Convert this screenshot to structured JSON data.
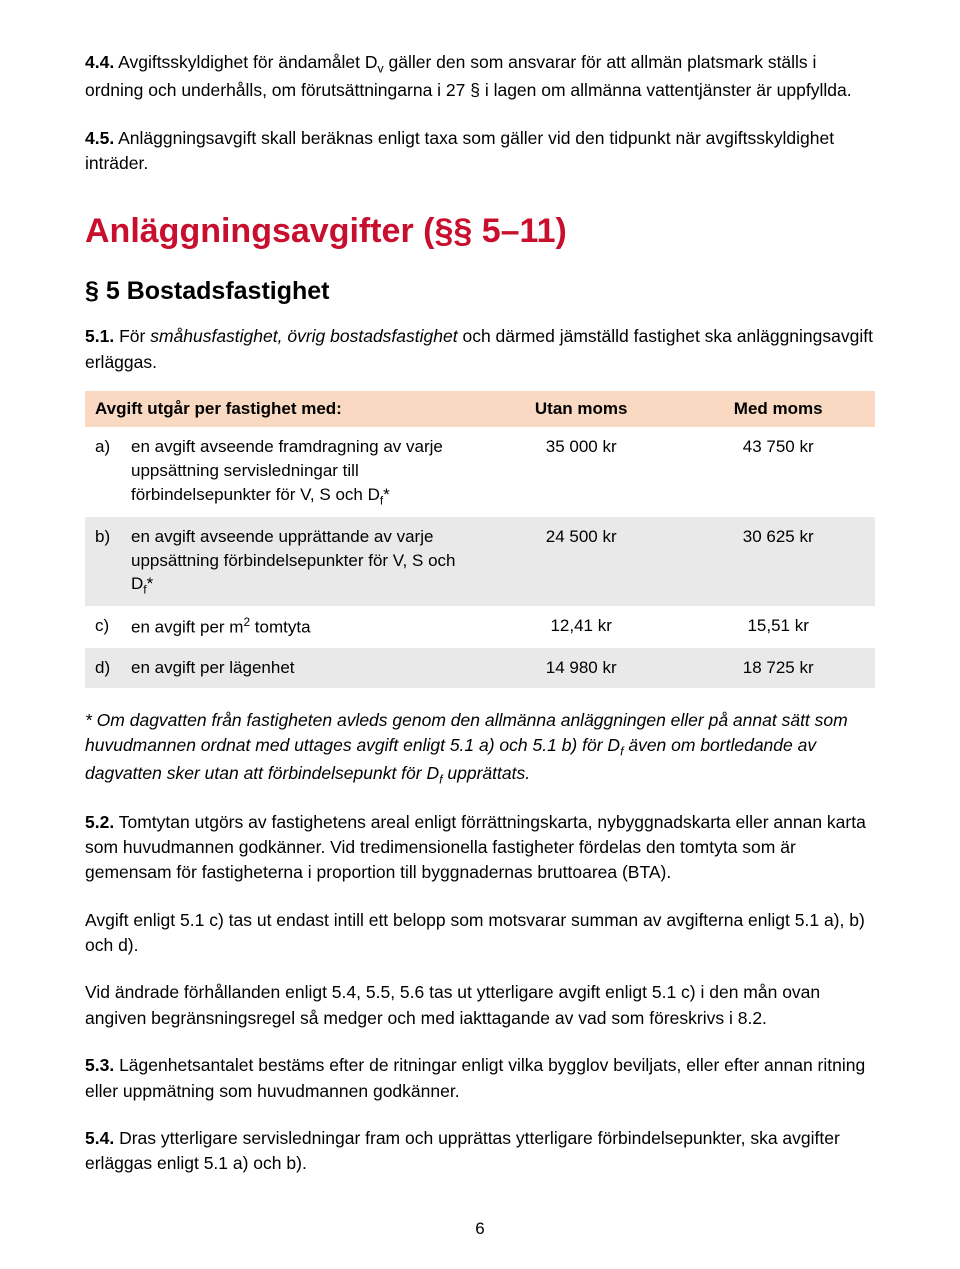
{
  "colors": {
    "accent_red": "#c8102e",
    "table_header_bg": "#f9d9c2",
    "table_alt_bg": "#e9e9e9",
    "text": "#000000",
    "background": "#ffffff"
  },
  "typography": {
    "body_fontsize_pt": 13,
    "h1_fontsize_pt": 25,
    "h2_fontsize_pt": 19,
    "body_lineheight": 1.45
  },
  "para_4_4_lead": "4.4.",
  "para_4_4_body_before_sub": " Avgiftsskyldighet för ändamålet D",
  "para_4_4_sub": "v",
  "para_4_4_body_after_sub": " gäller den som ansvarar för att allmän platsmark ställs i ordning och underhålls, om förutsättningarna i 27 § i lagen om allmänna vattentjänster är uppfyllda.",
  "para_4_5_lead": "4.5.",
  "para_4_5_body": " Anläggningsavgift skall beräknas enligt taxa som gäller vid den tidpunkt när avgiftsskyldighet inträder.",
  "heading_main": "Anläggningsavgifter (§§ 5–11)",
  "heading_sub": "§ 5 Bostadsfastighet",
  "intro_5_1_lead": "5.1.",
  "intro_5_1_before_italic": " För ",
  "intro_5_1_italic": "småhusfastighet, övrig bostadsfastighet",
  "intro_5_1_after_italic": " och därmed jämställd fastighet ska anläggningsavgift erläggas.",
  "table": {
    "columns": [
      "Avgift utgår per fastighet med:",
      "Utan moms",
      "Med moms"
    ],
    "col_align": [
      "left",
      "center",
      "center"
    ],
    "rows": [
      {
        "label": "a)",
        "desc_pre": "en avgift avseende framdragning av varje uppsättning servisledningar till förbindelsepunkter för V, S och D",
        "desc_sub": "f",
        "desc_post": "*",
        "utan": "35 000 kr",
        "med": "43 750 kr",
        "alt": false
      },
      {
        "label": "b)",
        "desc_pre": "en avgift avseende upprättande av varje uppsättning förbindelsepunkter för V, S och D",
        "desc_sub": "f",
        "desc_post": "*",
        "utan": "24 500 kr",
        "med": "30 625 kr",
        "alt": true
      },
      {
        "label": "c)",
        "desc_pre": "en avgift per m",
        "desc_sup": "2",
        "desc_post": " tomtyta",
        "utan": "12,41 kr",
        "med": "15,51 kr",
        "alt": false
      },
      {
        "label": "d)",
        "desc_pre": "en avgift per lägenhet",
        "utan": "14 980 kr",
        "med": "18 725 kr",
        "alt": true
      }
    ]
  },
  "footnote_pre": "* Om dagvatten från fastigheten avleds genom den allmänna anläggningen eller på annat sätt som huvudmannen ordnat med uttages avgift enligt 5.1 a) och 5.1 b) för D",
  "footnote_sub": "f",
  "footnote_mid": " även om bortledande av dagvatten sker utan att förbindelsepunkt för D",
  "footnote_sub2": "f",
  "footnote_post": " upprättats.",
  "para_5_2_lead": "5.2.",
  "para_5_2_body": " Tomtytan utgörs av fastighetens areal enligt förrättningskarta, nybyggnadskarta eller annan karta som huvudmannen godkänner. Vid tredimensionella fastigheter fördelas den tomtyta som är gemensam för fastigheterna i proportion till byggnadernas bruttoarea (BTA).",
  "para_5_2b": "Avgift enligt 5.1 c) tas ut endast intill ett belopp som motsvarar summan av avgifterna enligt 5.1 a), b) och d).",
  "para_5_2c": "Vid ändrade förhållanden enligt 5.4, 5.5, 5.6  tas ut ytterligare avgift enligt 5.1 c) i den mån ovan angiven begränsningsregel så medger och med iakttagande av vad som föreskrivs i 8.2.",
  "para_5_3_lead": "5.3.",
  "para_5_3_body": " Lägenhetsantalet bestäms efter de ritningar enligt vilka bygglov beviljats, eller efter annan ritning eller uppmätning som huvudmannen godkänner.",
  "para_5_4_lead": "5.4.",
  "para_5_4_body": " Dras ytterligare servisledningar fram och upprättas ytterligare förbindelsepunkter, ska avgifter erläggas enligt 5.1 a) och b).",
  "page_number": "6"
}
